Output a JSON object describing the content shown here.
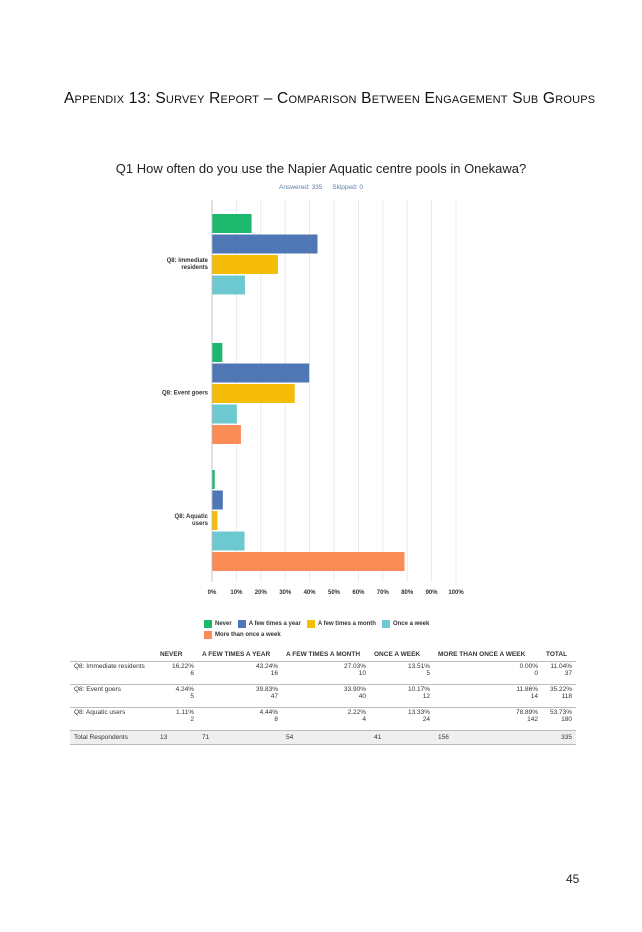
{
  "heading": "Appendix 13: Survey Report – Comparison Between Engagement Sub Groups",
  "chart_data": {
    "type": "bar",
    "orientation": "horizontal",
    "title": "Q1 How often do you use the Napier Aquatic centre pools in Onekawa?",
    "answered_label": "Answered: 335",
    "skipped_label": "Skipped: 0",
    "categories": [
      "Q8: Immediate residents",
      "Q8: Event goers",
      "Q8: Aquatic users"
    ],
    "x_ticks": [
      "0%",
      "10%",
      "20%",
      "30%",
      "40%",
      "50%",
      "60%",
      "70%",
      "80%",
      "90%",
      "100%"
    ],
    "xlim": [
      0,
      100
    ],
    "grid": true,
    "legend_position": "bottom",
    "series": [
      {
        "name": "Never",
        "color": "#1cb86e",
        "values": [
          16.22,
          4.24,
          1.11
        ]
      },
      {
        "name": "A few times a year",
        "color": "#4f76b5",
        "values": [
          43.24,
          39.83,
          4.44
        ]
      },
      {
        "name": "A few times a month",
        "color": "#f5bd07",
        "values": [
          27.03,
          33.9,
          2.22
        ]
      },
      {
        "name": "Once a week",
        "color": "#6cc9cf",
        "values": [
          13.51,
          10.17,
          13.33
        ]
      },
      {
        "name": "More than once a week",
        "color": "#fb8c58",
        "values": [
          0.0,
          11.86,
          78.89
        ]
      }
    ]
  },
  "table": {
    "headers": [
      "",
      "NEVER",
      "A FEW TIMES A YEAR",
      "A FEW TIMES A MONTH",
      "ONCE A WEEK",
      "MORE THAN ONCE A WEEK",
      "TOTAL"
    ],
    "rows": [
      {
        "label": "Q8: Immediate residents",
        "cells": [
          [
            "16.22%",
            "6"
          ],
          [
            "43.24%",
            "16"
          ],
          [
            "27.03%",
            "10"
          ],
          [
            "13.51%",
            "5"
          ],
          [
            "0.00%",
            "0"
          ],
          [
            "11.04%",
            "37"
          ]
        ]
      },
      {
        "label": "Q8: Event goers",
        "cells": [
          [
            "4.24%",
            "5"
          ],
          [
            "39.83%",
            "47"
          ],
          [
            "33.90%",
            "40"
          ],
          [
            "10.17%",
            "12"
          ],
          [
            "11.86%",
            "14"
          ],
          [
            "35.22%",
            "118"
          ]
        ]
      },
      {
        "label": "Q8: Aquatic users",
        "cells": [
          [
            "1.11%",
            "2"
          ],
          [
            "4.44%",
            "8"
          ],
          [
            "2.22%",
            "4"
          ],
          [
            "13.33%",
            "24"
          ],
          [
            "78.89%",
            "142"
          ],
          [
            "53.73%",
            "180"
          ]
        ]
      }
    ],
    "total": {
      "label": "Total Respondents",
      "values": [
        "13",
        "71",
        "54",
        "41",
        "156",
        "335"
      ]
    }
  },
  "page_number": "45"
}
